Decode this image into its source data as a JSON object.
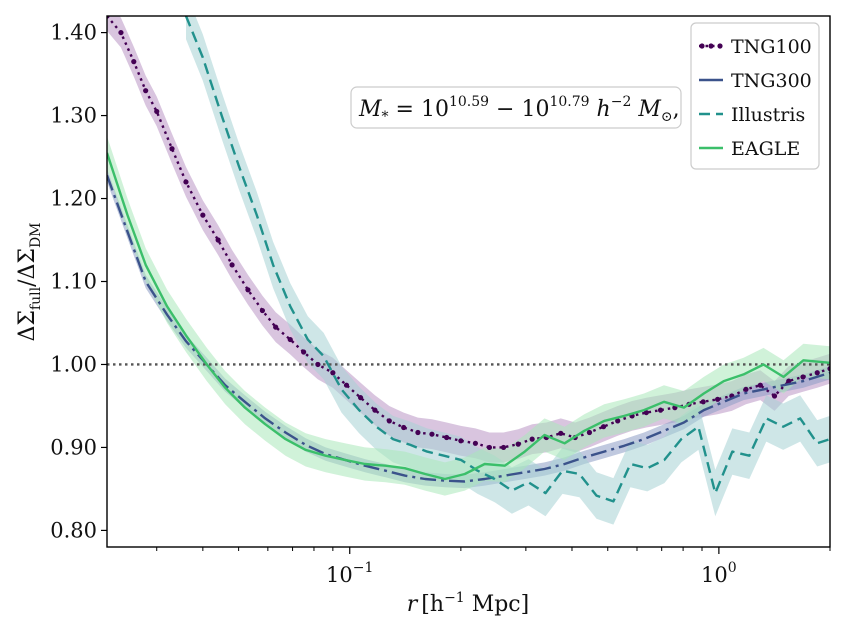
{
  "chart_data": {
    "type": "line",
    "xscale": "log",
    "xlim": [
      0.022,
      2.0
    ],
    "ylim": [
      0.78,
      1.42
    ],
    "xlabel": {
      "main": "r",
      "unit_lead": "[h",
      "unit_exp": "−1",
      "unit_tail": " Mpc]"
    },
    "ylabel": {
      "a": "ΔΣ",
      "a_sub": "full",
      "slash": "/ΔΣ",
      "b_sub": "DM"
    },
    "yticks": [
      0.8,
      0.9,
      1.0,
      1.1,
      1.2,
      1.3,
      1.4
    ],
    "ytick_labels": [
      "0.80",
      "0.90",
      "1.00",
      "1.10",
      "1.20",
      "1.30",
      "1.40"
    ],
    "xticks": [
      {
        "value": 0.1,
        "base": "10",
        "exp": "−1"
      },
      {
        "value": 1.0,
        "base": "10",
        "exp": "0"
      }
    ],
    "reference_line": {
      "y": 1.0,
      "color": "#555555"
    },
    "annotation": {
      "lhs": "M",
      "lhs_sub": "*",
      "eq": " = 10",
      "exp1": "10.59",
      "dash": " − 10",
      "exp2": "10.79",
      "h": " h",
      "hexp": "−2",
      "msun": " M",
      "msun_sub": "⊙",
      "tail": ","
    },
    "series": [
      {
        "name": "TNG100",
        "color": "#440154",
        "band_color": "#b996c4",
        "style": "dotted-marker",
        "band_width": 0.018,
        "x": [
          0.022,
          0.024,
          0.026,
          0.028,
          0.03,
          0.033,
          0.036,
          0.04,
          0.044,
          0.048,
          0.053,
          0.058,
          0.063,
          0.069,
          0.075,
          0.082,
          0.09,
          0.098,
          0.107,
          0.117,
          0.128,
          0.14,
          0.153,
          0.167,
          0.183,
          0.2,
          0.219,
          0.239,
          0.261,
          0.286,
          0.312,
          0.341,
          0.373,
          0.408,
          0.446,
          0.487,
          0.532,
          0.582,
          0.636,
          0.695,
          0.76,
          0.83,
          0.907,
          0.992,
          1.084,
          1.184,
          1.295,
          1.415,
          1.546,
          1.69,
          1.847,
          2.0
        ],
        "y": [
          1.42,
          1.4,
          1.365,
          1.33,
          1.305,
          1.26,
          1.22,
          1.18,
          1.15,
          1.12,
          1.09,
          1.065,
          1.045,
          1.03,
          1.015,
          1.0,
          0.99,
          0.975,
          0.96,
          0.945,
          0.932,
          0.924,
          0.918,
          0.916,
          0.912,
          0.908,
          0.905,
          0.9,
          0.9,
          0.904,
          0.91,
          0.912,
          0.917,
          0.912,
          0.918,
          0.925,
          0.932,
          0.938,
          0.942,
          0.945,
          0.948,
          0.952,
          0.955,
          0.958,
          0.962,
          0.97,
          0.975,
          0.962,
          0.98,
          0.985,
          0.99,
          0.995
        ]
      },
      {
        "name": "TNG300",
        "color": "#3b528b",
        "band_color": "#8c9dc4",
        "style": "dashdot",
        "band_width": 0.008,
        "x": [
          0.022,
          0.025,
          0.028,
          0.032,
          0.036,
          0.041,
          0.046,
          0.052,
          0.059,
          0.067,
          0.076,
          0.086,
          0.097,
          0.11,
          0.125,
          0.141,
          0.16,
          0.181,
          0.205,
          0.232,
          0.263,
          0.298,
          0.337,
          0.382,
          0.432,
          0.489,
          0.554,
          0.627,
          0.71,
          0.804,
          0.91,
          1.031,
          1.167,
          1.321,
          1.496,
          1.694,
          2.0
        ],
        "y": [
          1.228,
          1.16,
          1.1,
          1.06,
          1.028,
          1.0,
          0.975,
          0.955,
          0.935,
          0.918,
          0.903,
          0.892,
          0.885,
          0.878,
          0.872,
          0.866,
          0.862,
          0.86,
          0.859,
          0.862,
          0.866,
          0.87,
          0.874,
          0.88,
          0.888,
          0.895,
          0.902,
          0.91,
          0.92,
          0.93,
          0.945,
          0.955,
          0.965,
          0.97,
          0.975,
          0.98,
          0.99
        ]
      },
      {
        "name": "Illustris",
        "color": "#21918c",
        "band_color": "#a6d2d4",
        "style": "dashed",
        "band_width": 0.028,
        "x": [
          0.036,
          0.04,
          0.045,
          0.05,
          0.056,
          0.062,
          0.069,
          0.077,
          0.085,
          0.095,
          0.106,
          0.118,
          0.131,
          0.146,
          0.162,
          0.18,
          0.2,
          0.222,
          0.247,
          0.275,
          0.305,
          0.339,
          0.377,
          0.419,
          0.466,
          0.518,
          0.576,
          0.64,
          0.712,
          0.791,
          0.88,
          0.978,
          1.087,
          1.209,
          1.344,
          1.494,
          1.661,
          1.847,
          2.0
        ],
        "y": [
          1.42,
          1.37,
          1.3,
          1.24,
          1.18,
          1.12,
          1.07,
          1.03,
          1.01,
          0.97,
          0.945,
          0.925,
          0.91,
          0.903,
          0.895,
          0.89,
          0.885,
          0.872,
          0.862,
          0.848,
          0.858,
          0.845,
          0.872,
          0.868,
          0.842,
          0.835,
          0.88,
          0.875,
          0.885,
          0.91,
          0.925,
          0.845,
          0.895,
          0.89,
          0.935,
          0.925,
          0.935,
          0.905,
          0.91
        ]
      },
      {
        "name": "EAGLE",
        "color": "#3bbf6a",
        "band_color": "#a9e8b9",
        "style": "solid",
        "band_width": 0.02,
        "x": [
          0.022,
          0.025,
          0.028,
          0.032,
          0.036,
          0.041,
          0.046,
          0.052,
          0.059,
          0.067,
          0.076,
          0.086,
          0.097,
          0.11,
          0.125,
          0.141,
          0.16,
          0.181,
          0.205,
          0.232,
          0.263,
          0.298,
          0.337,
          0.382,
          0.432,
          0.489,
          0.554,
          0.627,
          0.71,
          0.804,
          0.91,
          1.031,
          1.167,
          1.321,
          1.496,
          1.694,
          2.0
        ],
        "y": [
          1.255,
          1.18,
          1.12,
          1.07,
          1.035,
          1.0,
          0.972,
          0.948,
          0.928,
          0.91,
          0.897,
          0.89,
          0.885,
          0.88,
          0.878,
          0.875,
          0.868,
          0.862,
          0.868,
          0.88,
          0.878,
          0.895,
          0.915,
          0.905,
          0.92,
          0.932,
          0.938,
          0.945,
          0.955,
          0.948,
          0.965,
          0.98,
          0.988,
          1.0,
          0.985,
          1.005,
          1.002
        ]
      }
    ],
    "legend": {
      "position": "top-right"
    }
  }
}
